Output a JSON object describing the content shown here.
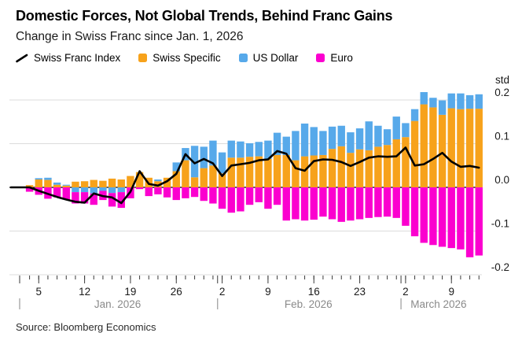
{
  "header": {
    "title": "Domestic Forces, Not Global Trends, Behind Franc Gains",
    "subtitle": "Change in Swiss Franc since Jan. 1, 2026"
  },
  "legend": {
    "items": [
      {
        "label": "Swiss Franc Index",
        "marker": "line",
        "color": "#000000"
      },
      {
        "label": "Swiss Specific",
        "marker": "square",
        "color": "#F7A21B"
      },
      {
        "label": "US Dollar",
        "marker": "square",
        "color": "#57A9EA"
      },
      {
        "label": "Euro",
        "marker": "square",
        "color": "#FB00CF"
      }
    ]
  },
  "chart_data": {
    "type": "bar",
    "stacked": true,
    "title": "Domestic Forces, Not Global Trends, Behind Franc Gains",
    "subtitle": "Change in Swiss Franc since Jan. 1, 2026",
    "unit_label": "std",
    "ylabel": "std",
    "xlabel": "",
    "grid": true,
    "legend_position": "top",
    "ylim": [
      -0.205,
      0.225
    ],
    "yticks": [
      0.2,
      0.1,
      0.0,
      -0.1,
      -0.2
    ],
    "categories": [
      "Jan 2",
      "Jan 5",
      "Jan 6",
      "Jan 7",
      "Jan 8",
      "Jan 9",
      "Jan 12",
      "Jan 13",
      "Jan 14",
      "Jan 15",
      "Jan 16",
      "Jan 19",
      "Jan 20",
      "Jan 21",
      "Jan 22",
      "Jan 23",
      "Jan 26",
      "Jan 27",
      "Jan 28",
      "Jan 29",
      "Jan 30",
      "Feb 2",
      "Feb 3",
      "Feb 4",
      "Feb 5",
      "Feb 6",
      "Feb 9",
      "Feb 10",
      "Feb 11",
      "Feb 12",
      "Feb 13",
      "Feb 16",
      "Feb 17",
      "Feb 18",
      "Feb 19",
      "Feb 20",
      "Feb 23",
      "Feb 24",
      "Feb 25",
      "Feb 26",
      "Feb 27",
      "Mar 2",
      "Mar 3",
      "Mar 4",
      "Mar 5",
      "Mar 6",
      "Mar 9",
      "Mar 10",
      "Mar 11",
      "Mar 12"
    ],
    "series": [
      {
        "name": "Swiss Specific",
        "type": "bar",
        "color": "#F7A21B",
        "values": [
          0.005,
          0.018,
          0.017,
          0.006,
          0.004,
          0.013,
          0.014,
          0.017,
          0.015,
          0.02,
          0.018,
          0.026,
          0.035,
          0.022,
          0.014,
          0.022,
          0.037,
          0.062,
          0.023,
          0.044,
          0.05,
          0.032,
          0.068,
          0.068,
          0.07,
          0.071,
          0.065,
          0.074,
          0.074,
          0.062,
          0.071,
          0.073,
          0.074,
          0.088,
          0.094,
          0.079,
          0.087,
          0.085,
          0.093,
          0.097,
          0.11,
          0.115,
          0.152,
          0.19,
          0.183,
          0.166,
          0.181,
          0.179,
          0.18,
          0.18
        ]
      },
      {
        "name": "US Dollar",
        "type": "bar",
        "color": "#57A9EA",
        "values": [
          0.0,
          0.003,
          0.005,
          0.005,
          0.002,
          -0.011,
          -0.011,
          -0.014,
          -0.008,
          -0.013,
          -0.011,
          0.0,
          0.0,
          0.0,
          0.004,
          0.0,
          0.02,
          0.028,
          0.072,
          0.049,
          0.057,
          0.048,
          0.039,
          0.037,
          0.031,
          0.033,
          0.042,
          0.051,
          0.042,
          0.067,
          0.075,
          0.065,
          0.055,
          0.051,
          0.047,
          0.047,
          0.048,
          0.066,
          0.048,
          0.036,
          0.052,
          0.032,
          0.027,
          0.028,
          0.022,
          0.033,
          0.034,
          0.036,
          0.031,
          0.033
        ]
      },
      {
        "name": "Euro",
        "type": "bar",
        "color": "#FB00CF",
        "values": [
          -0.01,
          -0.017,
          -0.026,
          -0.023,
          -0.028,
          -0.026,
          -0.026,
          -0.026,
          -0.021,
          -0.031,
          -0.036,
          -0.025,
          -0.004,
          -0.02,
          -0.016,
          -0.023,
          -0.029,
          -0.025,
          -0.022,
          -0.031,
          -0.037,
          -0.049,
          -0.058,
          -0.055,
          -0.04,
          -0.034,
          -0.049,
          -0.04,
          -0.076,
          -0.073,
          -0.076,
          -0.074,
          -0.067,
          -0.073,
          -0.079,
          -0.076,
          -0.073,
          -0.07,
          -0.068,
          -0.067,
          -0.07,
          -0.088,
          -0.112,
          -0.127,
          -0.132,
          -0.136,
          -0.139,
          -0.142,
          -0.16,
          -0.156
        ]
      },
      {
        "name": "Swiss Franc Index",
        "type": "line",
        "color": "#000000",
        "values": [
          0.0,
          -0.008,
          -0.015,
          -0.022,
          -0.028,
          -0.033,
          -0.035,
          -0.014,
          -0.02,
          -0.023,
          -0.036,
          -0.01,
          0.037,
          0.008,
          0.004,
          0.014,
          0.031,
          0.076,
          0.055,
          0.065,
          0.055,
          0.026,
          0.05,
          0.053,
          0.056,
          0.062,
          0.064,
          0.083,
          0.077,
          0.044,
          0.038,
          0.06,
          0.064,
          0.063,
          0.058,
          0.049,
          0.058,
          0.068,
          0.071,
          0.07,
          0.071,
          0.091,
          0.05,
          0.053,
          0.065,
          0.079,
          0.059,
          0.047,
          0.049,
          0.045
        ]
      }
    ],
    "xticks": [
      {
        "label": "5",
        "index": 1
      },
      {
        "label": "12",
        "index": 6
      },
      {
        "label": "19",
        "index": 11
      },
      {
        "label": "26",
        "index": 16
      },
      {
        "label": "2",
        "index": 21
      },
      {
        "label": "9",
        "index": 26
      },
      {
        "label": "16",
        "index": 31
      },
      {
        "label": "23",
        "index": 36
      },
      {
        "label": "2",
        "index": 41
      },
      {
        "label": "9",
        "index": 46
      }
    ],
    "month_separators": [
      {
        "x_index": -1.08
      },
      {
        "x_index": 20.5
      },
      {
        "x_index": 40.5
      }
    ],
    "month_labels": [
      {
        "text": "Jan. 2026",
        "center_index": 9.6
      },
      {
        "text": "Feb. 2026",
        "center_index": 30.4
      },
      {
        "text": "March 2026",
        "center_index": 44.6
      }
    ],
    "colors": {
      "grid": "#DCDCDC",
      "zero_line": "#000000",
      "tick": "#3a3a3a",
      "tick_label": "#1a1a1a",
      "month_label": "#8a8a8a",
      "y_label": "#1a1a1a"
    }
  },
  "source": "Source: Bloomberg Economics"
}
